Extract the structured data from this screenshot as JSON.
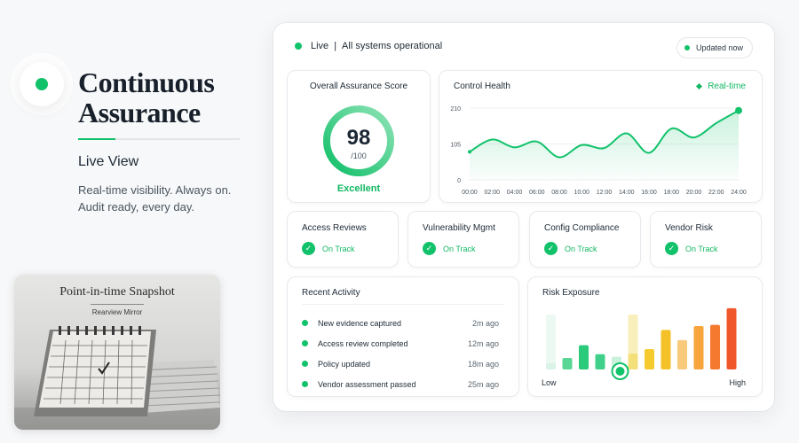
{
  "hero": {
    "title_line1": "Continuous",
    "title_line2": "Assurance",
    "subtitle": "Live View",
    "description_line1": "Real-time visibility. Always on.",
    "description_line2": "Audit ready, every day."
  },
  "snapshot": {
    "title": "Point-in-time Snapshot",
    "subtitle": "Rearview Mirror"
  },
  "status": {
    "live": "Live",
    "separator": "|",
    "message": "All systems operational",
    "updated_label": "Updated now"
  },
  "score": {
    "title": "Overall Assurance Score",
    "value": "98",
    "denominator": "/100",
    "rating": "Excellent",
    "fraction": 0.98
  },
  "health": {
    "title": "Control Health",
    "realtime_label": "Real-time"
  },
  "chart_data": {
    "type": "area",
    "title": "Control Health",
    "x": [
      "00:00",
      "02:00",
      "04:00",
      "06:00",
      "08:00",
      "10:00",
      "12:00",
      "14:00",
      "16:00",
      "18:00",
      "20:00",
      "22:00",
      "24:00"
    ],
    "y_ticks": [
      "210",
      "105",
      "0"
    ],
    "ylim": [
      0,
      210
    ],
    "values": [
      82,
      118,
      95,
      112,
      66,
      102,
      93,
      136,
      79,
      150,
      124,
      166,
      203
    ],
    "grid": true,
    "color": "#12c26b"
  },
  "cards": [
    {
      "title": "Access Reviews",
      "status": "On Track"
    },
    {
      "title": "Vulnerability Mgmt",
      "status": "On Track"
    },
    {
      "title": "Config Compliance",
      "status": "On Track"
    },
    {
      "title": "Vendor Risk",
      "status": "On Track"
    }
  ],
  "activity": {
    "title": "Recent Activity",
    "items": [
      {
        "text": "New evidence captured",
        "time": "2m ago"
      },
      {
        "text": "Access review completed",
        "time": "12m ago"
      },
      {
        "text": "Policy updated",
        "time": "18m ago"
      },
      {
        "text": "Vendor assessment passed",
        "time": "25m ago"
      }
    ]
  },
  "risk": {
    "title": "Risk Exposure",
    "low_label": "Low",
    "high_label": "High",
    "levels": [
      0.1,
      0.18,
      0.38,
      0.24,
      0.2,
      0.25,
      0.32,
      0.62,
      0.46,
      0.68,
      0.7,
      0.96
    ],
    "colors": [
      "#d9f4e6",
      "#58d694",
      "#2bc97a",
      "#3fd18a",
      "#c9f2dc",
      "#f4e07a",
      "#f6cb2e",
      "#f5c128",
      "#f9c97c",
      "#f7a53d",
      "#f5792e",
      "#f0582c"
    ],
    "marker_index": 4
  },
  "colors": {
    "accent": "#12c26b",
    "text": "#1b2733"
  }
}
